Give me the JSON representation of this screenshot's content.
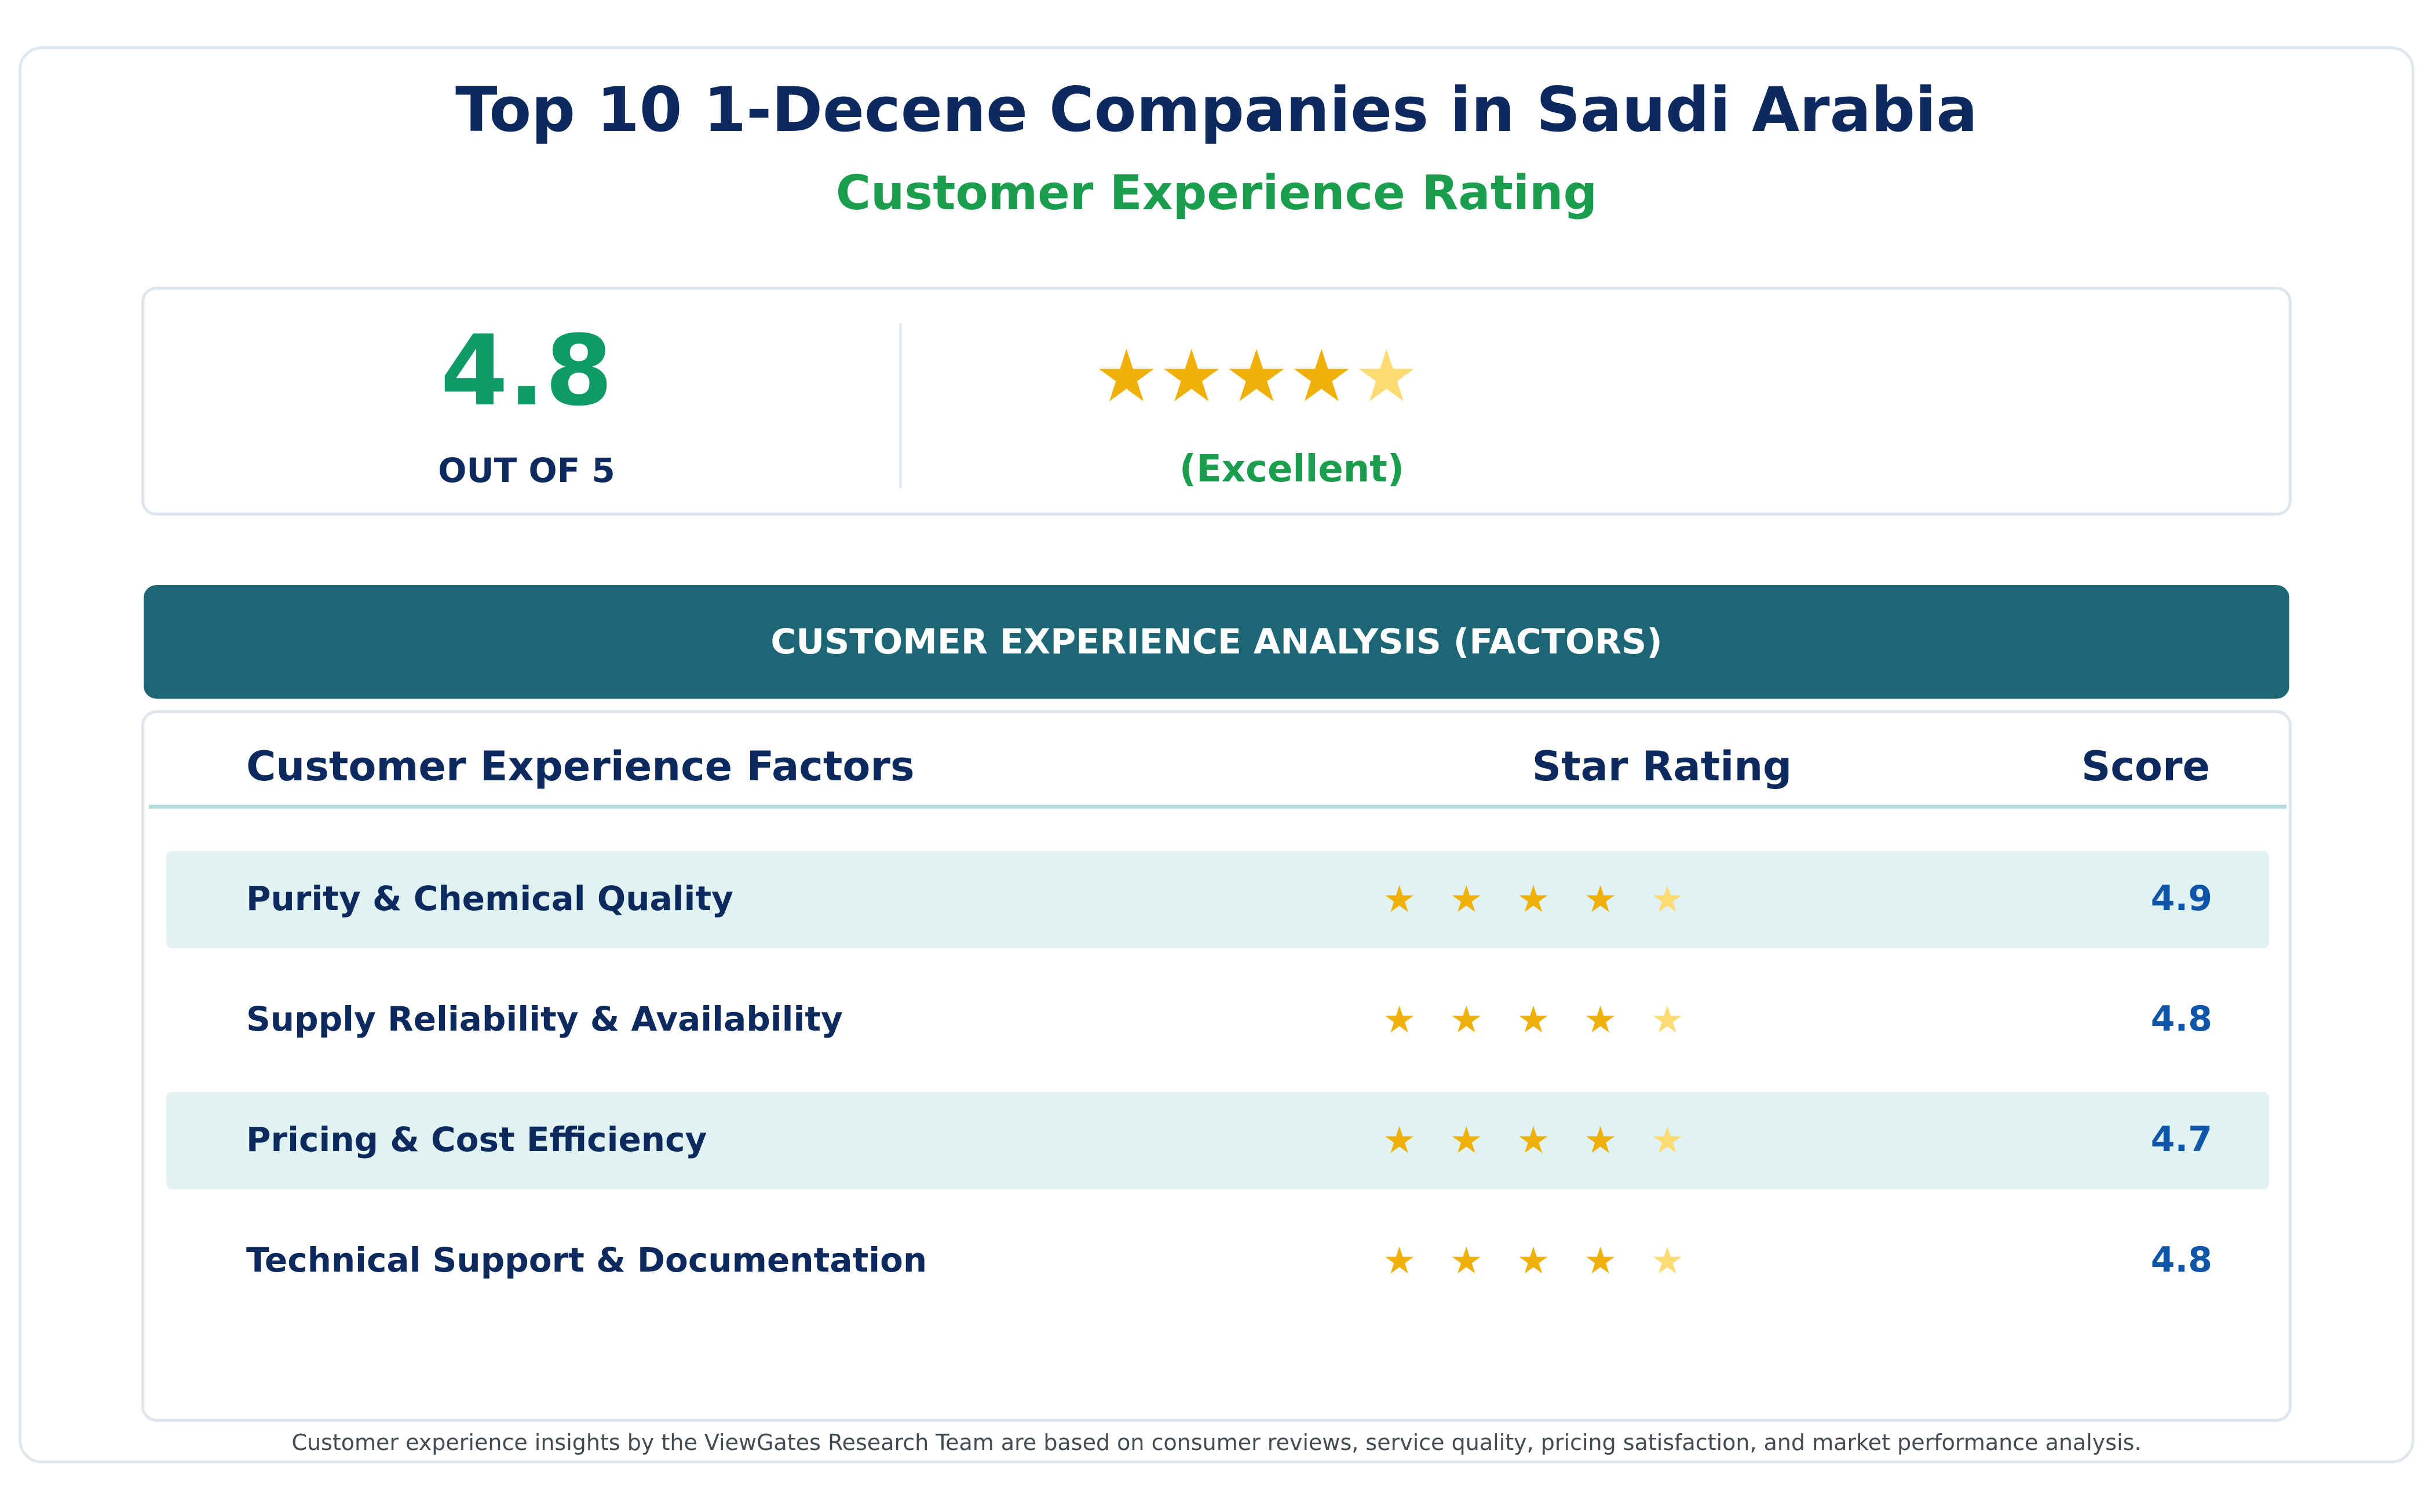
{
  "title": "Top 10 1-Decene Companies in Saudi Arabia",
  "subtitle": "Customer Experience Rating",
  "summary": {
    "score": "4.8",
    "out_of": "OUT OF 5",
    "rating_value": 4.8,
    "star_glyph": "★",
    "verdict": "(Excellent)"
  },
  "section_banner": "CUSTOMER EXPERIENCE ANALYSIS (FACTORS)",
  "table": {
    "headers": {
      "factor": "Customer Experience Factors",
      "rating": "Star Rating",
      "score": "Score"
    },
    "rows": [
      {
        "label": "Purity & Chemical Quality",
        "score": "4.9",
        "rating_value": 4.9,
        "shaded": true
      },
      {
        "label": "Supply Reliability & Availability",
        "score": "4.8",
        "rating_value": 4.8,
        "shaded": false
      },
      {
        "label": "Pricing & Cost Efficiency",
        "score": "4.7",
        "rating_value": 4.7,
        "shaded": true
      },
      {
        "label": "Technical Support & Documentation",
        "score": "4.8",
        "rating_value": 4.8,
        "shaded": false
      }
    ]
  },
  "footnote": "Customer experience insights by the ViewGates Research Team are based on consumer reviews, service quality, pricing satisfaction, and market performance analysis.",
  "colors": {
    "star_full": "#efb00a",
    "star_partial": "#fcdb73",
    "title": "#0c2a5e",
    "accent_green": "#1a9e4e",
    "banner": "#1c6675"
  }
}
